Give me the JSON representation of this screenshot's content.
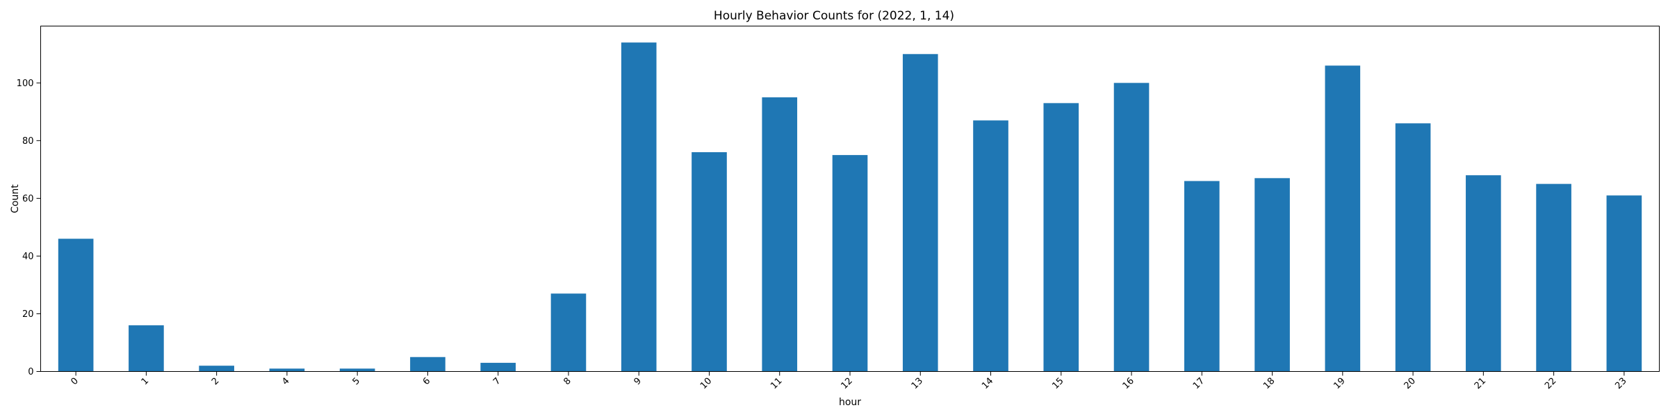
{
  "chart_data": {
    "type": "bar",
    "title": "Hourly Behavior Counts for (2022, 1, 14)",
    "xlabel": "hour",
    "ylabel": "Count",
    "categories": [
      "0",
      "1",
      "2",
      "4",
      "5",
      "6",
      "7",
      "8",
      "9",
      "10",
      "11",
      "12",
      "13",
      "14",
      "15",
      "16",
      "17",
      "18",
      "19",
      "20",
      "21",
      "22",
      "23"
    ],
    "values": [
      46,
      16,
      2,
      1,
      1,
      5,
      3,
      27,
      114,
      76,
      95,
      75,
      110,
      87,
      93,
      100,
      66,
      67,
      106,
      86,
      68,
      65,
      61
    ],
    "yticks": [
      0,
      20,
      40,
      60,
      80,
      100
    ],
    "ylim": [
      0,
      119.7
    ],
    "grid": false,
    "legend": "none",
    "bar_color": "#1f77b4"
  }
}
